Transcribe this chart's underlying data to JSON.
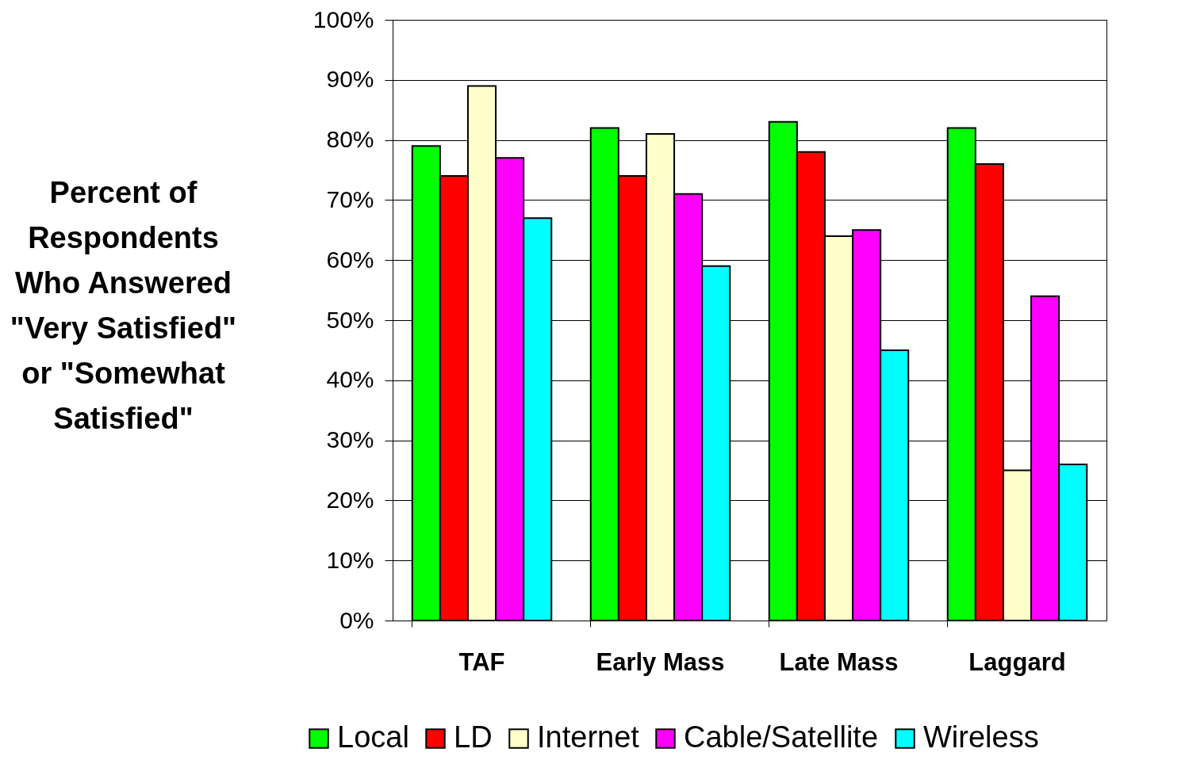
{
  "chart_data": {
    "type": "bar",
    "ylabel": "Percent of\nRespondents\nWho Answered\n\"Very Satisfied\"\nor \"Somewhat\nSatisfied\"",
    "categories": [
      "TAF",
      "Early Mass",
      "Late Mass",
      "Laggard"
    ],
    "series": [
      {
        "name": "Local",
        "color": "#00ff00",
        "values": [
          79,
          82,
          83,
          82
        ]
      },
      {
        "name": "LD",
        "color": "#ff0000",
        "values": [
          74,
          74,
          78,
          76
        ]
      },
      {
        "name": "Internet",
        "color": "#ffffcc",
        "values": [
          89,
          81,
          64,
          25
        ]
      },
      {
        "name": "Cable/Satellite",
        "color": "#ff00ff",
        "values": [
          77,
          71,
          65,
          54
        ]
      },
      {
        "name": "Wireless",
        "color": "#00ffff",
        "values": [
          67,
          59,
          45,
          26
        ]
      }
    ],
    "ylim": [
      0,
      100
    ],
    "yticks": [
      {
        "value": 0,
        "label": "0%"
      },
      {
        "value": 10,
        "label": "10%"
      },
      {
        "value": 20,
        "label": "20%"
      },
      {
        "value": 30,
        "label": "30%"
      },
      {
        "value": 40,
        "label": "40%"
      },
      {
        "value": 50,
        "label": "50%"
      },
      {
        "value": 60,
        "label": "60%"
      },
      {
        "value": 70,
        "label": "70%"
      },
      {
        "value": 80,
        "label": "80%"
      },
      {
        "value": 90,
        "label": "90%"
      },
      {
        "value": 100,
        "label": "100%"
      }
    ],
    "grid": "y",
    "legend": "bottom"
  }
}
